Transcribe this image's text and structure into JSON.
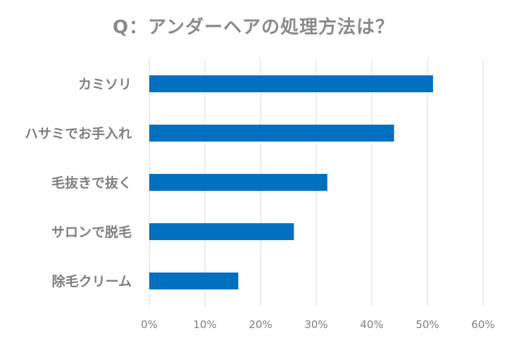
{
  "chart_data": {
    "type": "bar",
    "orientation": "horizontal",
    "title": "Q：アンダーヘアの処理方法は？",
    "categories": [
      "カミソリ",
      "ハサミでお手入れ",
      "毛抜きで抜く",
      "サロンで脱毛",
      "除毛クリーム"
    ],
    "values": [
      51,
      44,
      32,
      26,
      16
    ],
    "x_ticks": [
      "0%",
      "10%",
      "20%",
      "30%",
      "40%",
      "50%",
      "60%"
    ],
    "xlim": [
      0,
      60
    ],
    "grid": "vertical",
    "legend": "none",
    "bar_color": "#0070c0",
    "grid_color": "#d9d9d9",
    "label_color": "#7f7f7f",
    "title_color": "#8a8a8a"
  }
}
